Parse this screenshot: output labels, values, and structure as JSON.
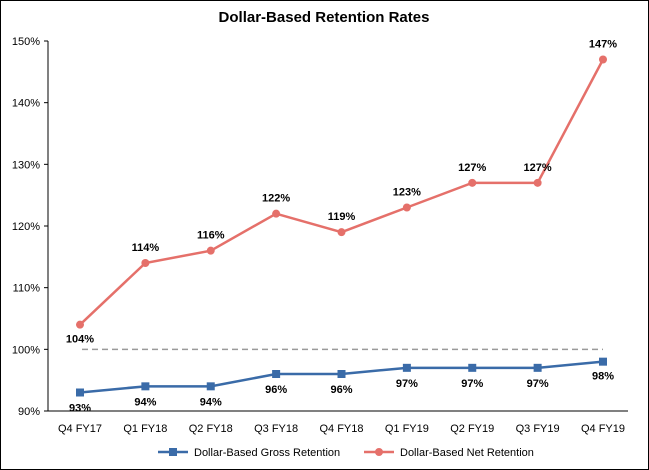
{
  "chart_data": {
    "type": "line",
    "title": "Dollar-Based Retention Rates",
    "categories": [
      "Q4 FY17",
      "Q1 FY18",
      "Q2 FY18",
      "Q3 FY18",
      "Q4 FY18",
      "Q1 FY19",
      "Q2 FY19",
      "Q3 FY19",
      "Q4 FY19"
    ],
    "yticks": [
      "90%",
      "100%",
      "110%",
      "120%",
      "130%",
      "140%",
      "150%"
    ],
    "ylim": [
      90,
      150
    ],
    "reference_line": 100,
    "grid": false,
    "legend_position": "bottom",
    "series": [
      {
        "name": "Dollar-Based Gross Retention",
        "values": [
          93,
          94,
          94,
          96,
          96,
          97,
          97,
          97,
          98
        ],
        "labels": [
          "93%",
          "94%",
          "94%",
          "96%",
          "96%",
          "97%",
          "97%",
          "97%",
          "98%"
        ],
        "color": "#3A6BA8",
        "marker": "square"
      },
      {
        "name": "Dollar-Based Net Retention",
        "values": [
          104,
          114,
          116,
          122,
          119,
          123,
          127,
          127,
          147
        ],
        "labels": [
          "104%",
          "114%",
          "116%",
          "122%",
          "119%",
          "123%",
          "127%",
          "127%",
          "147%"
        ],
        "color": "#E5706A",
        "marker": "circle"
      }
    ]
  }
}
